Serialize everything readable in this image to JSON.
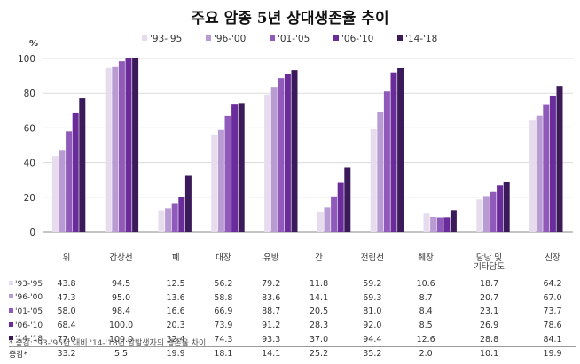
{
  "title": "주요 암종 5년 상대생존율 추이",
  "note": "* 증감: '93-'95년 대비 '14-'18년 암발생자의 생존율 차이",
  "colors": [
    "#e6dcee",
    "#b99bd4",
    "#8f5ab9",
    "#6a2c9a",
    "#3b1a5a"
  ],
  "chart_data": {
    "type": "bar",
    "yunit": "%",
    "ylim": [
      0,
      100
    ],
    "yticks": [
      0,
      20,
      40,
      60,
      80,
      100
    ],
    "grid": true,
    "legend_position": "top",
    "categories": [
      "위",
      "갑상선",
      "폐",
      "대장",
      "유방",
      "간",
      "전립선",
      "췌장",
      "담낭 및\n기타담도",
      "신장"
    ],
    "series": [
      {
        "name": "'93-'95",
        "values": [
          43.8,
          94.5,
          12.5,
          56.2,
          79.2,
          11.8,
          59.2,
          10.6,
          18.7,
          64.2
        ]
      },
      {
        "name": "'96-'00",
        "values": [
          47.3,
          95.0,
          13.6,
          58.8,
          83.6,
          14.1,
          69.3,
          8.7,
          20.7,
          67.0
        ]
      },
      {
        "name": "'01-'05",
        "values": [
          58.0,
          98.4,
          16.6,
          66.9,
          88.7,
          20.5,
          81.0,
          8.4,
          23.1,
          73.7
        ]
      },
      {
        "name": "'06-'10",
        "values": [
          68.4,
          100.0,
          20.3,
          73.9,
          91.2,
          28.3,
          92.0,
          8.5,
          26.9,
          78.6
        ]
      },
      {
        "name": "'14-'18",
        "values": [
          77.0,
          100.0,
          32.4,
          74.3,
          93.3,
          37.0,
          94.4,
          12.6,
          28.8,
          84.1
        ]
      }
    ],
    "change_row": {
      "name": "증감*",
      "values": [
        33.2,
        5.5,
        19.9,
        18.1,
        14.1,
        25.2,
        35.2,
        2.0,
        10.1,
        19.9
      ]
    }
  }
}
